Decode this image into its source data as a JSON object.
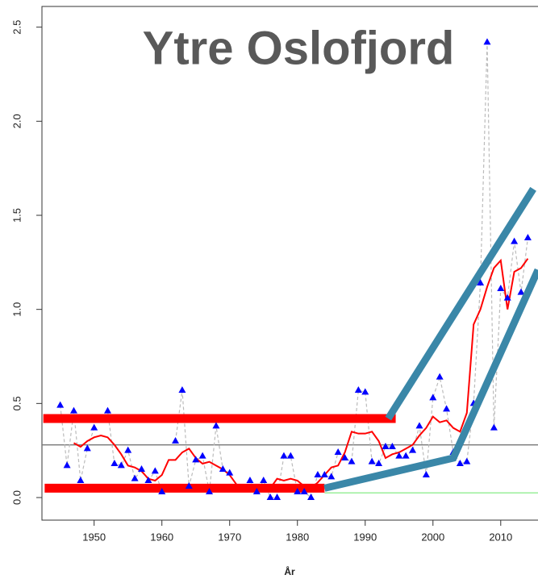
{
  "chart_data": {
    "type": "scatter",
    "title": "Ytre Oslofjord",
    "x_label": "År",
    "x": [
      1945,
      1946,
      1947,
      1948,
      1949,
      1950,
      1951,
      1952,
      1953,
      1954,
      1955,
      1956,
      1957,
      1958,
      1959,
      1960,
      1961,
      1962,
      1963,
      1964,
      1965,
      1966,
      1967,
      1968,
      1969,
      1970,
      1971,
      1972,
      1973,
      1974,
      1975,
      1976,
      1977,
      1978,
      1979,
      1980,
      1981,
      1982,
      1983,
      1984,
      1985,
      1986,
      1987,
      1988,
      1989,
      1990,
      1991,
      1992,
      1993,
      1994,
      1995,
      1996,
      1997,
      1998,
      1999,
      2000,
      2001,
      2002,
      2003,
      2004,
      2005,
      2006,
      2007,
      2008,
      2009,
      2010,
      2011,
      2012,
      2013,
      2014
    ],
    "series": [
      {
        "color": "#0000ff",
        "connector_color": "#bbbbbb",
        "values": [
          0.49,
          0.17,
          0.46,
          0.09,
          0.26,
          0.37,
          null,
          0.46,
          0.18,
          0.17,
          0.25,
          0.1,
          0.15,
          0.09,
          0.14,
          0.03,
          null,
          0.3,
          0.57,
          0.06,
          0.2,
          0.22,
          0.03,
          0.38,
          0.15,
          0.13,
          null,
          null,
          0.09,
          0.03,
          0.09,
          0,
          0,
          0.22,
          0.22,
          0.03,
          0.03,
          0,
          0.12,
          0.12,
          0.11,
          0.24,
          0.21,
          0.19,
          0.57,
          0.56,
          0.19,
          0.18,
          0.27,
          0.27,
          0.22,
          0.22,
          0.25,
          0.38,
          0.12,
          0.53,
          0.64,
          0.47,
          0.24,
          0.18,
          0.19,
          0.5,
          1.14,
          2.42,
          0.37,
          1.11,
          1.06,
          1.36,
          1.09,
          1.38
        ]
      },
      {
        "color": "#ff0000",
        "values": [
          null,
          null,
          0.29,
          0.27,
          0.3,
          0.32,
          0.33,
          0.32,
          0.28,
          0.23,
          0.17,
          0.16,
          0.14,
          0.1,
          0.09,
          0.12,
          0.2,
          0.2,
          0.24,
          0.26,
          0.21,
          0.18,
          0.19,
          0.17,
          0.15,
          0.12,
          0.07,
          0.04,
          0.04,
          0.04,
          0.04,
          0.05,
          0.1,
          0.09,
          0.1,
          0.09,
          0.06,
          0.05,
          0.08,
          0.12,
          0.16,
          0.17,
          0.24,
          0.35,
          0.34,
          0.34,
          0.35,
          0.3,
          0.21,
          0.23,
          0.24,
          0.26,
          0.28,
          0.33,
          0.37,
          0.43,
          0.4,
          0.41,
          0.37,
          0.35,
          0.45,
          0.92,
          1.0,
          1.12,
          1.22,
          1.26,
          1.0,
          1.2,
          1.22,
          1.27
        ]
      }
    ],
    "reference_lines": [
      {
        "y": 0.28,
        "color": "#777777"
      },
      {
        "y": 0.025,
        "x_start": 1984,
        "color": "#90ee90"
      }
    ],
    "annotation_bars": [
      {
        "x": [
          1942.5,
          1994.5
        ],
        "y": 0.42,
        "color": "#ff0000"
      },
      {
        "x": [
          1942.7,
          1984
        ],
        "y": 0.05,
        "color": "#ff0000"
      }
    ],
    "annotation_lines": [
      {
        "color": "#3a87a8",
        "x": [
          1993.4,
          2014.8
        ],
        "y": [
          0.42,
          1.64
        ]
      },
      {
        "color": "#3a87a8",
        "x": [
          1984,
          2003,
          2015.5
        ],
        "y": [
          0.05,
          0.21,
          1.21
        ]
      }
    ],
    "xlim": [
      1942.3,
      2015.5
    ],
    "ylim": [
      -0.12,
      2.61
    ],
    "xticks": [
      1950,
      1960,
      1970,
      1980,
      1990,
      2000,
      2010
    ],
    "yticks": [
      {
        "value": 0,
        "label": "0.0"
      },
      0.5,
      {
        "value": 1,
        "label": "1.0"
      },
      1.5,
      {
        "value": 2,
        "label": "2.0"
      },
      2.5
    ]
  }
}
